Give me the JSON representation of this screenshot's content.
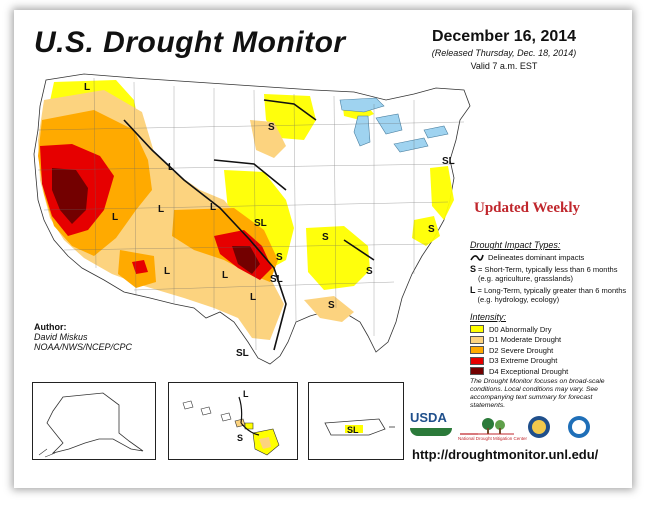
{
  "title": "U.S. Drought Monitor",
  "date": "December 16, 2014",
  "released": "(Released Thursday, Dec. 18, 2014)",
  "valid": "Valid 7 a.m. EST",
  "updated_label": "Updated Weekly",
  "impact": {
    "header": "Drought Impact Types:",
    "dominant_line": "Delineates dominant impacts",
    "short_key": "S",
    "short_text": "= Short-Term, typically less than 6 months (e.g. agriculture, grasslands)",
    "long_key": "L",
    "long_text": "= Long-Term, typically greater than 6 months (e.g. hydrology, ecology)"
  },
  "intensity": {
    "header": "Intensity:",
    "levels": [
      {
        "label": "D0 Abnormally Dry",
        "color": "#ffff00"
      },
      {
        "label": "D1 Moderate Drought",
        "color": "#fcd37f"
      },
      {
        "label": "D2 Severe Drought",
        "color": "#ffaa00"
      },
      {
        "label": "D3 Extreme Drought",
        "color": "#e60000"
      },
      {
        "label": "D4 Exceptional Drought",
        "color": "#730000"
      }
    ]
  },
  "note": "The Drought Monitor focuses on broad-scale conditions. Local conditions may vary. See accompanying text summary for forecast statements.",
  "author": {
    "label": "Author:",
    "name": "David Miskus",
    "org": "NOAA/NWS/NCEP/CPC"
  },
  "url": "http://droughtmonitor.unl.edu/",
  "logos": {
    "usda": "USDA",
    "ndmc": "National Drought Mitigation Center"
  },
  "map_labels": {
    "L": "L",
    "S": "S",
    "SL": "SL"
  },
  "colors": {
    "d0": "#ffff00",
    "d1": "#fcd37f",
    "d2": "#ffaa00",
    "d3": "#e60000",
    "d4": "#730000",
    "water": "#9fd3f0",
    "title_red": "#c0272d"
  }
}
